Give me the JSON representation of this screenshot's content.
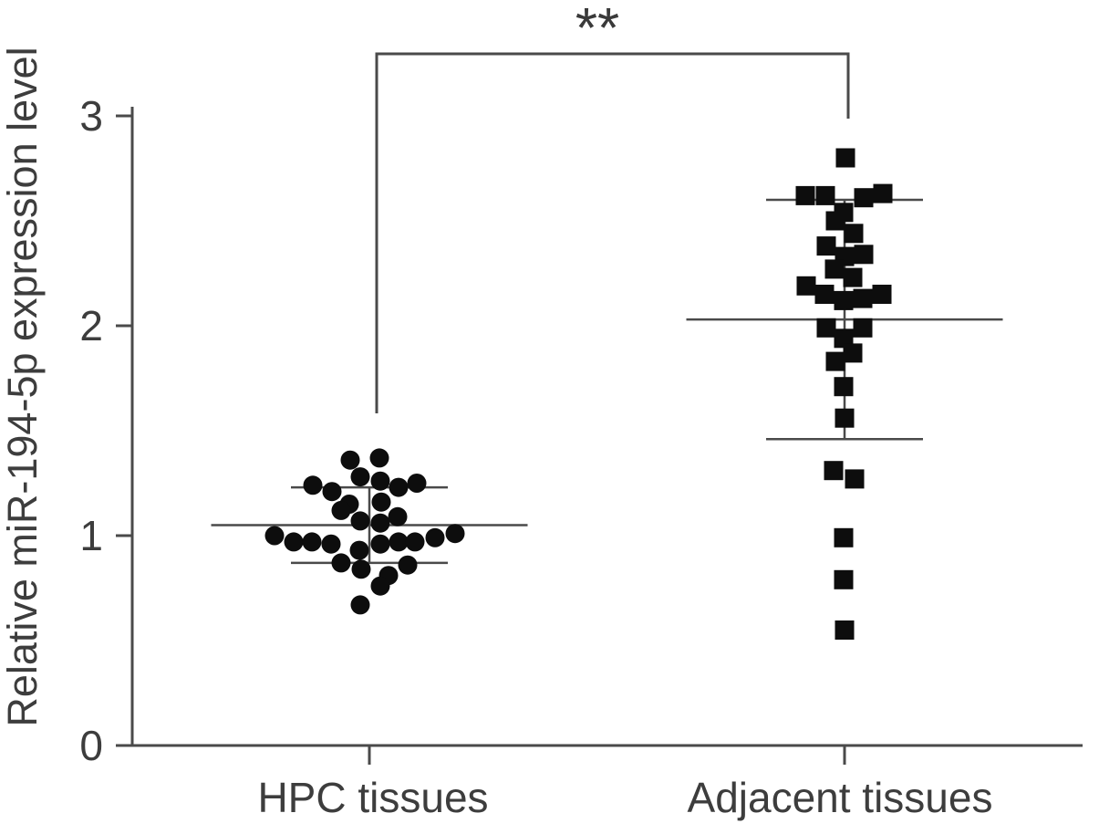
{
  "chart_data": {
    "type": "scatter",
    "title": "",
    "xlabel": "",
    "ylabel": "Relative miR-194-5p expression level",
    "categories": [
      "HPC tissues",
      "Adjacent tissues"
    ],
    "y_ticks": [
      0,
      1,
      2,
      3
    ],
    "ylim": [
      0,
      3.05
    ],
    "grid": false,
    "legend": "none",
    "significance": {
      "label": "**",
      "between": [
        "HPC tissues",
        "Adjacent tissues"
      ]
    },
    "colors": {
      "marker": "#0d0d0d",
      "axis": "#4a4a4a",
      "text": "#3d3d3d"
    },
    "series": [
      {
        "name": "HPC tissues",
        "marker": "circle",
        "n": 30,
        "error_bars": {
          "mean": 1.05,
          "upper": 1.23,
          "lower": 0.87
        },
        "points": [
          [
            -21,
            1.36
          ],
          [
            11,
            1.37
          ],
          [
            -10,
            1.28
          ],
          [
            12,
            1.26
          ],
          [
            -62,
            1.24
          ],
          [
            -41,
            1.21
          ],
          [
            32,
            1.23
          ],
          [
            52,
            1.25
          ],
          [
            13,
            1.16
          ],
          [
            -22,
            1.15
          ],
          [
            -31,
            1.12
          ],
          [
            -10,
            1.07
          ],
          [
            12,
            1.06
          ],
          [
            31,
            1.09
          ],
          [
            -104,
            1.0
          ],
          [
            -83,
            0.97
          ],
          [
            -63,
            0.97
          ],
          [
            -42,
            0.96
          ],
          [
            12,
            0.96
          ],
          [
            32,
            0.97
          ],
          [
            50,
            0.97
          ],
          [
            72,
            0.99
          ],
          [
            94,
            1.01
          ],
          [
            -11,
            0.93
          ],
          [
            -31,
            0.87
          ],
          [
            -9,
            0.84
          ],
          [
            21,
            0.81
          ],
          [
            42,
            0.86
          ],
          [
            12,
            0.76
          ],
          [
            -10,
            0.67
          ]
        ]
      },
      {
        "name": "Adjacent tissues",
        "marker": "square",
        "n": 30,
        "error_bars": {
          "mean": 2.03,
          "upper": 2.6,
          "lower": 1.46
        },
        "points": [
          [
            1,
            2.8
          ],
          [
            -43,
            2.62
          ],
          [
            -21,
            2.62
          ],
          [
            21,
            2.61
          ],
          [
            42,
            2.63
          ],
          [
            -1,
            2.54
          ],
          [
            -10,
            2.5
          ],
          [
            10,
            2.44
          ],
          [
            -20,
            2.38
          ],
          [
            0,
            2.33
          ],
          [
            21,
            2.34
          ],
          [
            -11,
            2.27
          ],
          [
            9,
            2.23
          ],
          [
            -42,
            2.19
          ],
          [
            -22,
            2.15
          ],
          [
            -1,
            2.12
          ],
          [
            20,
            2.13
          ],
          [
            41,
            2.15
          ],
          [
            -20,
            1.99
          ],
          [
            20,
            1.99
          ],
          [
            -1,
            1.94
          ],
          [
            9,
            1.87
          ],
          [
            -10,
            1.83
          ],
          [
            -1,
            1.71
          ],
          [
            0,
            1.56
          ],
          [
            -12,
            1.31
          ],
          [
            11,
            1.27
          ],
          [
            -1,
            0.99
          ],
          [
            -1,
            0.79
          ],
          [
            0,
            0.55
          ]
        ]
      }
    ]
  }
}
